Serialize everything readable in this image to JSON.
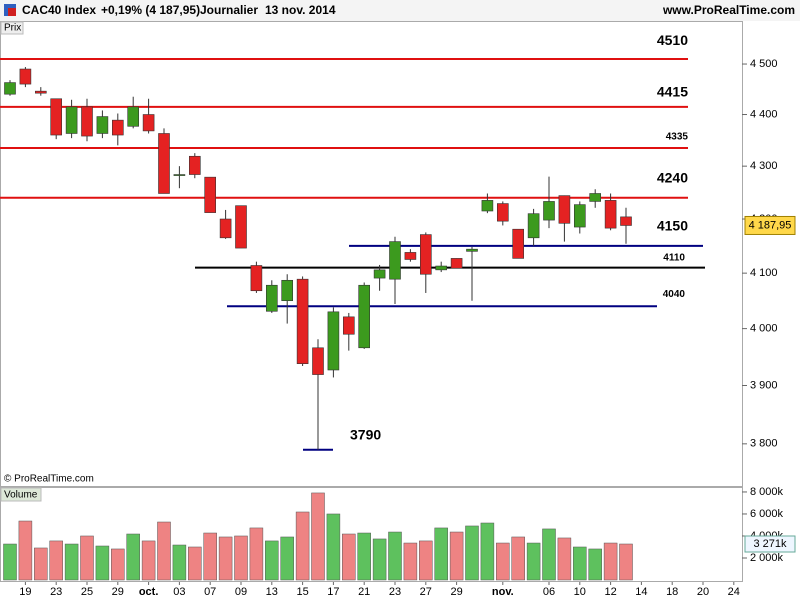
{
  "header": {
    "title": "CAC40 Index",
    "change": "+0,19% (4 187,95)",
    "period": "Journalier",
    "date": "13 nov. 2014",
    "site": "www.ProRealTime.com"
  },
  "chart_data": [
    {
      "type": "candlestick",
      "panel_label": "Prix",
      "watermark": "© ProRealTime.com",
      "log_scale": true,
      "categories": [
        null,
        "19",
        null,
        "23",
        null,
        "25",
        null,
        "29",
        null,
        "oct.",
        null,
        "03",
        null,
        "07",
        null,
        "09",
        null,
        "13",
        null,
        "15",
        null,
        "17",
        null,
        "21",
        null,
        "23",
        null,
        "27",
        null,
        "29",
        null,
        null,
        "nov.",
        null,
        null,
        "06",
        null,
        "10",
        null,
        "12",
        null,
        "14",
        null,
        "18",
        null,
        "20",
        null,
        "24"
      ],
      "open": [
        4440,
        4490,
        4446,
        4431,
        4363,
        4415,
        4363,
        4389,
        4377,
        4400,
        4363,
        4282,
        4319,
        4279,
        4200,
        4225,
        4114,
        4031,
        4050,
        4089,
        3966,
        3927,
        4021,
        3966,
        4091,
        4089,
        4138,
        4171,
        4106,
        4127,
        4140,
        4215,
        4229,
        4181,
        4165,
        4198,
        4244,
        4185,
        4233,
        4235,
        4204,
        null,
        null,
        null,
        null,
        null,
        null,
        null
      ],
      "high": [
        4468,
        4494,
        4454,
        4431,
        4429,
        4431,
        4408,
        4402,
        4435,
        4431,
        4373,
        4300,
        4325,
        4279,
        4217,
        4225,
        4121,
        4087,
        4098,
        4094,
        3981,
        4038,
        4028,
        4083,
        4115,
        4167,
        4144,
        4175,
        4121,
        4127,
        4148,
        4248,
        4233,
        4181,
        4219,
        4280,
        4244,
        4233,
        4256,
        4248,
        4221,
        null,
        null,
        null,
        null,
        null,
        null,
        null
      ],
      "low": [
        4437,
        4454,
        4437,
        4352,
        4354,
        4348,
        4354,
        4340,
        4373,
        4363,
        4248,
        4258,
        4277,
        4212,
        4163,
        4146,
        4064,
        4028,
        4009,
        3934,
        3790,
        3914,
        3961,
        3964,
        4068,
        4044,
        4121,
        4064,
        4102,
        4109,
        4050,
        4211,
        4188,
        4127,
        4150,
        4183,
        4158,
        4173,
        4221,
        4179,
        4154,
        null,
        null,
        null,
        null,
        null,
        null,
        null
      ],
      "close": [
        4463,
        4460,
        4442,
        4360,
        4415,
        4358,
        4396,
        4360,
        4415,
        4368,
        4248,
        4284,
        4284,
        4212,
        4165,
        4146,
        4068,
        4078,
        4087,
        3938,
        3919,
        4030,
        3990,
        4078,
        4106,
        4158,
        4125,
        4098,
        4113,
        4109,
        4144,
        4235,
        4196,
        4127,
        4210,
        4233,
        4192,
        4227,
        4248,
        4183,
        4187.95,
        null,
        null,
        null,
        null,
        null,
        null,
        null
      ],
      "up_color": "#3c9a1e",
      "down_color": "#e42222",
      "ylim": [
        3731,
        4585
      ],
      "yticks": [
        {
          "value": 3800,
          "label": "3 800"
        },
        {
          "value": 3900,
          "label": "3 900"
        },
        {
          "value": 4000,
          "label": "4 000"
        },
        {
          "value": 4100,
          "label": "4 100"
        },
        {
          "value": 4200,
          "label": "4 200"
        },
        {
          "value": 4300,
          "label": "4 300"
        },
        {
          "value": 4400,
          "label": "4 400"
        },
        {
          "value": 4500,
          "label": "4 500"
        }
      ],
      "levels": [
        {
          "value": 4510,
          "color": "#e01010"
        },
        {
          "value": 4415,
          "color": "#e01010"
        },
        {
          "value": 4335,
          "color": "#e01010"
        },
        {
          "value": 4240,
          "color": "#e01010"
        },
        {
          "value": 4150,
          "color": "#000080"
        },
        {
          "value": 4110,
          "color": "#000000"
        },
        {
          "value": 4040,
          "color": "#000080"
        },
        {
          "value": 3790,
          "color": "#000080"
        }
      ],
      "current_value": {
        "value": 4187.95,
        "label": "4 187,95"
      }
    },
    {
      "type": "bar",
      "panel_label": "Volume",
      "values": [
        3270,
        5360,
        2910,
        3550,
        3270,
        4000,
        3090,
        2820,
        4180,
        3550,
        5270,
        3180,
        3000,
        4270,
        3910,
        4000,
        4730,
        3550,
        3910,
        6180,
        7910,
        6000,
        4180,
        4270,
        3730,
        4360,
        3360,
        3550,
        4730,
        4360,
        4910,
        5180,
        3360,
        3910,
        3360,
        4640,
        3820,
        3000,
        2820,
        3360,
        3271,
        null,
        null,
        null,
        null,
        null,
        null,
        null
      ],
      "up_color": "#5ec15e",
      "down_color": "#ee8383",
      "ylim": [
        0,
        8360
      ],
      "yticks": [
        {
          "value": 2000,
          "label": "2 000k"
        },
        {
          "value": 4000,
          "label": "4 000k"
        },
        {
          "value": 6000,
          "label": "6 000k"
        },
        {
          "value": 8000,
          "label": "8 000k"
        }
      ],
      "current_value": {
        "value": 3271,
        "label": "3 271k"
      }
    }
  ]
}
